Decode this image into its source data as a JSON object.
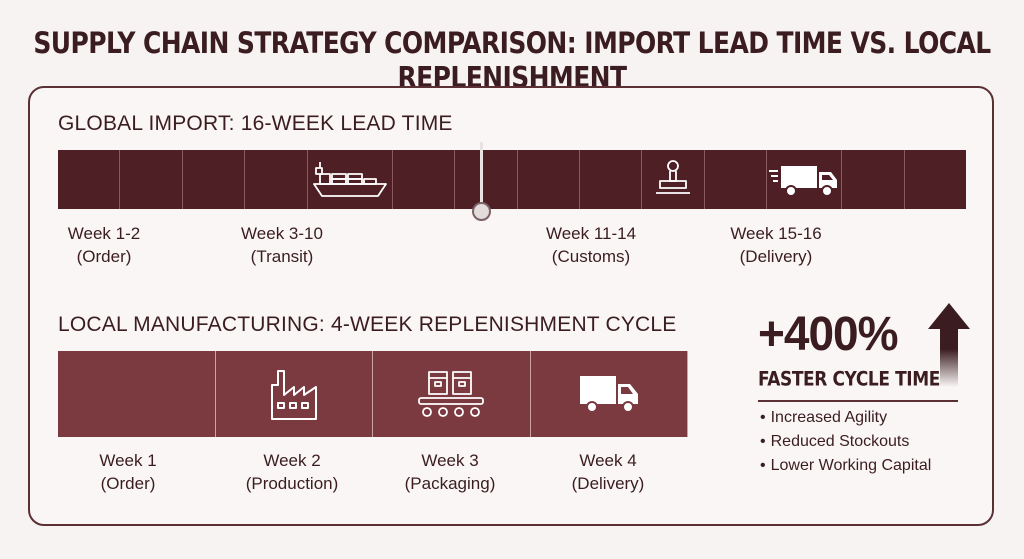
{
  "title": "SUPPLY CHAIN STRATEGY COMPARISON: IMPORT LEAD TIME VS. LOCAL REPLENISHMENT",
  "global": {
    "heading": "GLOBAL IMPORT: 16-WEEK LEAD TIME",
    "segments": 15,
    "icons": [
      "cargo-ship-icon",
      "customs-stamp-icon",
      "delivery-truck-icon"
    ],
    "marker_week": 8,
    "stages": [
      {
        "weeks": "Week 1-2",
        "name": "(Order)"
      },
      {
        "weeks": "Week 3-10",
        "name": "(Transit)"
      },
      {
        "weeks": "Week 11-14",
        "name": "(Customs)"
      },
      {
        "weeks": "Week 15-16",
        "name": "(Delivery)"
      }
    ]
  },
  "local": {
    "heading": "LOCAL MANUFACTURING: 4-WEEK REPLENISHMENT CYCLE",
    "icons": [
      "factory-icon",
      "conveyor-boxes-icon",
      "delivery-truck-icon"
    ],
    "stages": [
      {
        "weeks": "Week 1",
        "name": "(Order)"
      },
      {
        "weeks": "Week 2",
        "name": "(Production)"
      },
      {
        "weeks": "Week 3",
        "name": "(Packaging)"
      },
      {
        "weeks": "Week 4",
        "name": "(Delivery)"
      }
    ]
  },
  "highlight": {
    "value": "+400%",
    "label": "FASTER CYCLE TIME",
    "arrow_icon": "up-arrow-icon",
    "benefits": [
      "Increased Agility",
      "Reduced Stockouts",
      "Lower Working Capital"
    ]
  },
  "colors": {
    "global_bar": "#4f1f26",
    "local_bar": "#7a3a40",
    "text": "#3b1d21",
    "background": "#f7f3f2"
  }
}
